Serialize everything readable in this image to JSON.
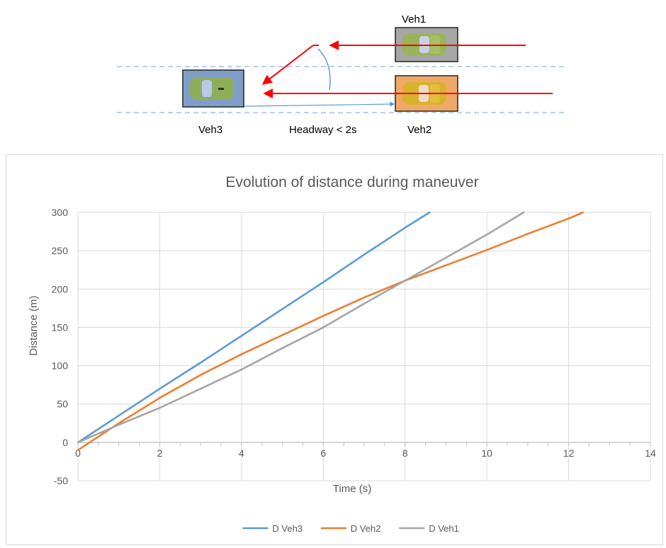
{
  "diagram": {
    "veh1_label": "Veh1",
    "veh2_label": "Veh2",
    "veh3_label": "Veh3",
    "headway_label": "Headway < 2s",
    "colors": {
      "veh1_box": "#a6a6a6",
      "veh2_box": "#f0a868",
      "veh3_box": "#7f9fc9",
      "trajectory_arrow": "#ff0000",
      "lane_line": "#8fb4e3",
      "headway_arrow": "#5b9bd5"
    }
  },
  "chart_data": {
    "type": "line",
    "title": "Evolution of distance during maneuver",
    "xlabel": "Time (s)",
    "ylabel": "Distance (m)",
    "xlim": [
      0,
      14
    ],
    "ylim": [
      -50,
      300
    ],
    "xticks": [
      0,
      2,
      4,
      6,
      8,
      10,
      12,
      14
    ],
    "yticks": [
      -50,
      0,
      50,
      100,
      150,
      200,
      250,
      300
    ],
    "grid": true,
    "legend_position": "bottom",
    "series": [
      {
        "name": "D Veh3",
        "color": "#5b9bd5",
        "x": [
          0,
          1,
          2,
          3,
          4,
          5,
          6,
          7,
          8,
          8.6
        ],
        "y": [
          0,
          35,
          70,
          104,
          139,
          174,
          209,
          245,
          280,
          300
        ]
      },
      {
        "name": "D Veh2",
        "color": "#ed7d31",
        "x": [
          0,
          1,
          2,
          3,
          4,
          5,
          6,
          7,
          8,
          9,
          10,
          11,
          12,
          12.35
        ],
        "y": [
          -10,
          25,
          58,
          88,
          115,
          140,
          165,
          189,
          211,
          231,
          251,
          272,
          292,
          300
        ]
      },
      {
        "name": "D Veh1",
        "color": "#a5a5a5",
        "x": [
          0,
          1,
          2,
          3,
          4,
          5,
          6,
          7,
          8,
          9,
          10,
          10.9
        ],
        "y": [
          0,
          23,
          45,
          70,
          95,
          123,
          150,
          181,
          211,
          241,
          271,
          300
        ]
      }
    ]
  }
}
